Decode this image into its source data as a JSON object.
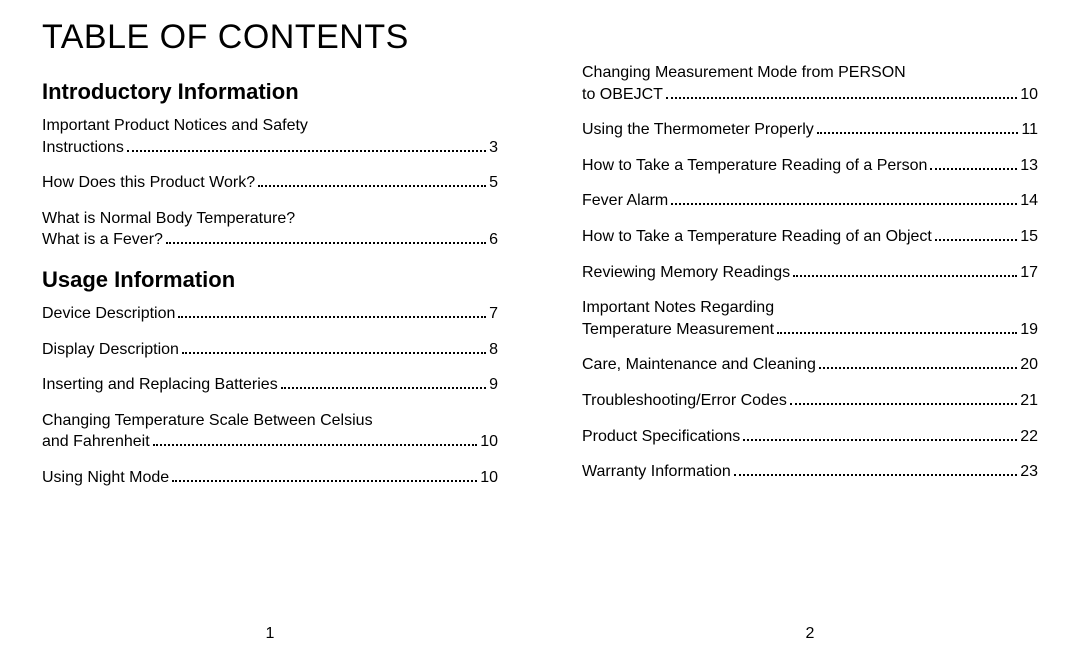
{
  "title": "TABLE OF CONTENTS",
  "left": {
    "pageno": "1",
    "sections": [
      {
        "heading": "Introductory Information",
        "entries": [
          {
            "lead": "Important Product Notices and Safety",
            "last": "Instructions",
            "page": "3"
          },
          {
            "lead": "",
            "last": "How Does this Product Work?",
            "page": "5"
          },
          {
            "lead": "What is Normal Body Temperature?",
            "last": "What is a Fever?",
            "page": "6"
          }
        ]
      },
      {
        "heading": "Usage Information",
        "entries": [
          {
            "lead": "",
            "last": "Device Description",
            "page": "7"
          },
          {
            "lead": "",
            "last": "Display Description",
            "page": "8"
          },
          {
            "lead": "",
            "last": "Inserting and Replacing Batteries",
            "page": "9"
          },
          {
            "lead": "Changing Temperature Scale Between Celsius",
            "last": "and Fahrenheit",
            "page": "10"
          },
          {
            "lead": "",
            "last": "Using Night Mode",
            "page": "10"
          }
        ]
      }
    ]
  },
  "right": {
    "pageno": "2",
    "sections": [
      {
        "heading": "",
        "entries": [
          {
            "lead": "Changing Measurement Mode from PERSON",
            "last": "to OBEJCT",
            "page": "10"
          },
          {
            "lead": "",
            "last": "Using the Thermometer Properly",
            "page": "11"
          },
          {
            "lead": "",
            "last": "How to Take a Temperature Reading of a Person",
            "page": "13"
          },
          {
            "lead": "",
            "last": "Fever Alarm",
            "page": "14"
          },
          {
            "lead": "",
            "last": "How to Take a Temperature Reading of an Object",
            "page": "15"
          },
          {
            "lead": "",
            "last": "Reviewing Memory Readings",
            "page": "17"
          },
          {
            "lead": "Important Notes Regarding",
            "last": "Temperature Measurement",
            "page": "19"
          },
          {
            "lead": "",
            "last": "Care, Maintenance and Cleaning",
            "page": "20"
          },
          {
            "lead": "",
            "last": "Troubleshooting/Error Codes",
            "page": "21"
          },
          {
            "lead": "",
            "last": "Product Specifications",
            "page": "22"
          },
          {
            "lead": "",
            "last": "Warranty Information",
            "page": "23"
          }
        ]
      }
    ]
  }
}
